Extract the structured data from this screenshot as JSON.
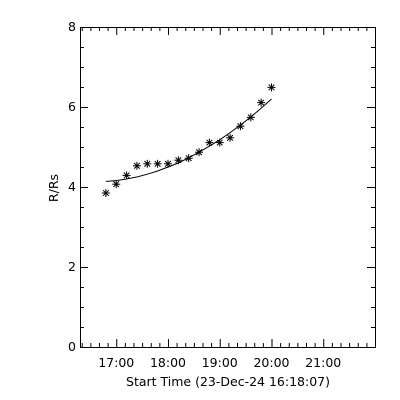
{
  "chart_data": {
    "type": "scatter",
    "title": "",
    "xlabel": "Start Time (23-Dec-24 16:18:07)",
    "ylabel": "R/Rs",
    "xlim": [
      "16:18",
      "22:00"
    ],
    "ylim": [
      0,
      8
    ],
    "x_ticks": [
      "17:00",
      "18:00",
      "19:00",
      "20:00",
      "21:00"
    ],
    "y_ticks": [
      "0",
      "2",
      "4",
      "6",
      "8"
    ],
    "x_minor_step_minutes": 10,
    "y_minor_step": 0.5,
    "grid": false,
    "legend": "none",
    "marker": "asterisk",
    "color": "#000000",
    "points": [
      {
        "x": "16:48",
        "y": 3.85
      },
      {
        "x": "17:00",
        "y": 4.07
      },
      {
        "x": "17:12",
        "y": 4.29
      },
      {
        "x": "17:24",
        "y": 4.53
      },
      {
        "x": "17:36",
        "y": 4.58
      },
      {
        "x": "17:48",
        "y": 4.58
      },
      {
        "x": "18:00",
        "y": 4.58
      },
      {
        "x": "18:12",
        "y": 4.67
      },
      {
        "x": "18:24",
        "y": 4.72
      },
      {
        "x": "18:36",
        "y": 4.87
      },
      {
        "x": "18:48",
        "y": 5.11
      },
      {
        "x": "19:00",
        "y": 5.11
      },
      {
        "x": "19:12",
        "y": 5.23
      },
      {
        "x": "19:24",
        "y": 5.52
      },
      {
        "x": "19:36",
        "y": 5.74
      },
      {
        "x": "19:48",
        "y": 6.11
      },
      {
        "x": "20:00",
        "y": 6.49
      }
    ],
    "fit_curve": {
      "type": "quadratic",
      "x": [
        "16:48",
        "17:00",
        "17:12",
        "17:24",
        "17:36",
        "17:48",
        "18:00",
        "18:12",
        "18:24",
        "18:36",
        "18:48",
        "19:00",
        "19:12",
        "19:24",
        "19:36",
        "19:48",
        "20:00"
      ],
      "y": [
        4.14,
        4.16,
        4.2,
        4.25,
        4.32,
        4.4,
        4.5,
        4.6,
        4.73,
        4.87,
        5.02,
        5.18,
        5.36,
        5.55,
        5.75,
        5.97,
        6.2
      ]
    }
  }
}
